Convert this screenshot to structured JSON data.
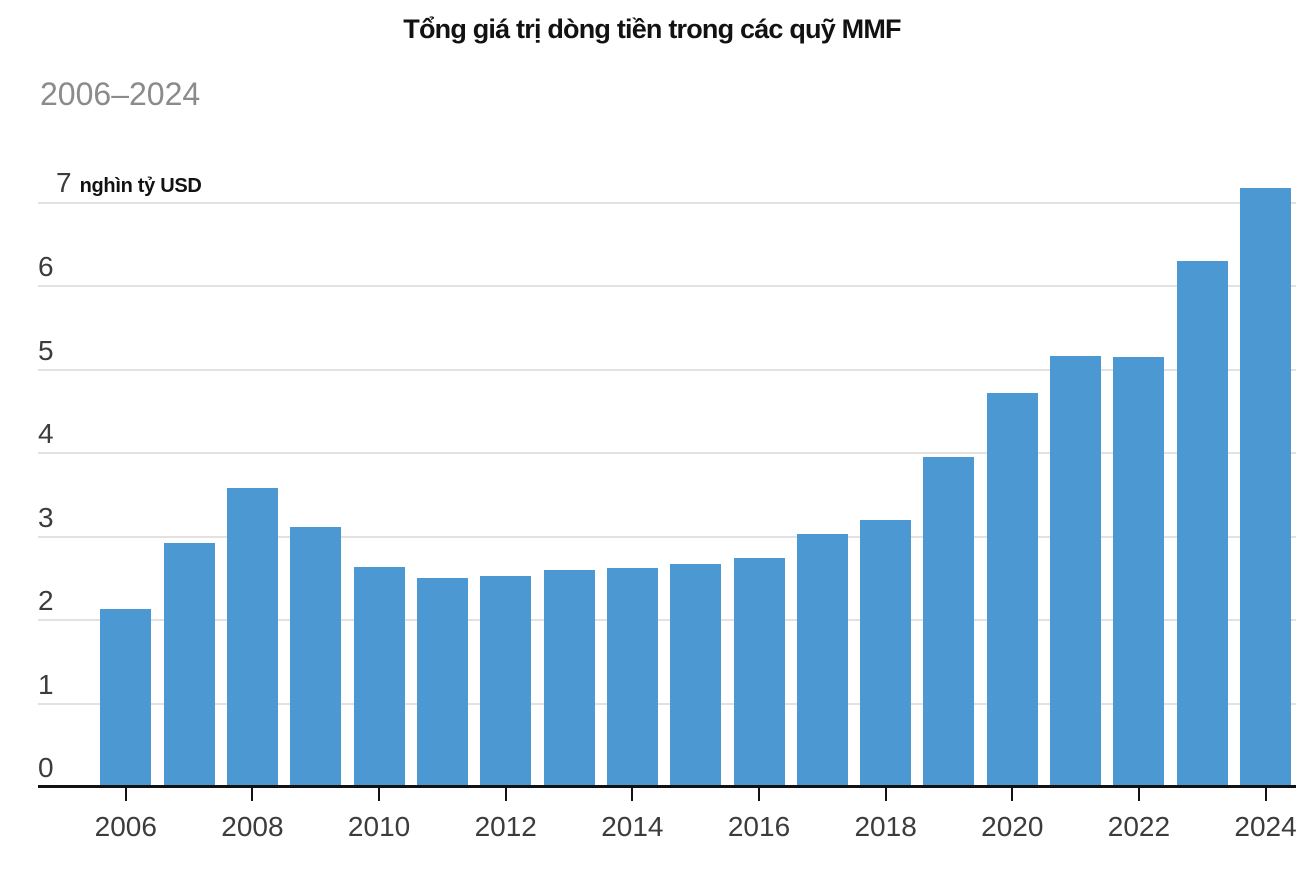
{
  "header": {
    "title": "Tổng giá trị dòng tiền trong các quỹ MMF",
    "subtitle": "2006–2024"
  },
  "chart_data": {
    "type": "bar",
    "title": "Tổng giá trị dòng tiền trong các quỹ MMF",
    "subtitle": "2006–2024",
    "xlabel": "",
    "ylabel": "nghìn tỷ USD",
    "unit_label": "nghìn tỷ USD",
    "y_top_tick": "7",
    "categories": [
      "2006",
      "2007",
      "2008",
      "2009",
      "2010",
      "2011",
      "2012",
      "2013",
      "2014",
      "2015",
      "2016",
      "2017",
      "2018",
      "2019",
      "2020",
      "2021",
      "2022",
      "2023",
      "2024"
    ],
    "values": [
      2.13,
      2.93,
      3.58,
      3.12,
      2.64,
      2.51,
      2.53,
      2.6,
      2.63,
      2.67,
      2.74,
      3.03,
      3.2,
      3.96,
      4.72,
      5.17,
      5.16,
      6.3,
      7.18
    ],
    "yticks": [
      0,
      1,
      2,
      3,
      4,
      5,
      6,
      7
    ],
    "xticks": [
      "2006",
      "2008",
      "2010",
      "2012",
      "2014",
      "2016",
      "2018",
      "2020",
      "2022",
      "2024"
    ],
    "ylim": [
      0,
      7.2
    ],
    "grid": "horizontal",
    "legend": "none",
    "colors": {
      "bar": "#4B98D3",
      "grid": "#e2e2e2",
      "axis": "#121212",
      "tick_label": "#3c3c3c",
      "title": "#121212",
      "subtitle": "#8b8b8b",
      "background": "#ffffff"
    }
  }
}
